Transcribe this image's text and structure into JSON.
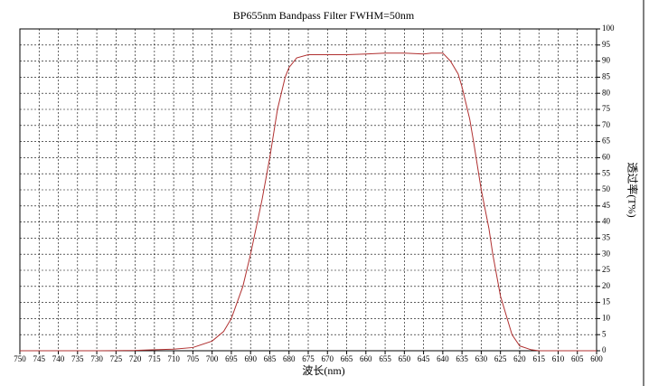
{
  "chart_data": {
    "type": "line",
    "title": "BP655nm Bandpass Filter FWHM=50nm",
    "x_label": "波长(nm)",
    "y_label": "透过率(T%)",
    "x": [
      750,
      740,
      730,
      720,
      715,
      710,
      705,
      700,
      697,
      695,
      692,
      690,
      687,
      685,
      683,
      681,
      680,
      678,
      675,
      670,
      665,
      660,
      655,
      650,
      645,
      643,
      640,
      638,
      636,
      635,
      633,
      632,
      630,
      628,
      627,
      625,
      623,
      622,
      620,
      617,
      615,
      610,
      600
    ],
    "series": [
      {
        "name": "BP655",
        "color": "#b03030",
        "values": [
          0,
          0,
          0,
          0.1,
          0.3,
          0.5,
          1,
          3,
          6,
          10,
          20,
          30,
          47,
          60,
          75,
          85,
          88,
          91,
          92,
          92,
          92,
          92.2,
          92.5,
          92.5,
          92.2,
          92.5,
          92.5,
          90,
          86,
          82,
          72,
          65,
          50,
          38,
          30,
          17,
          9,
          5,
          1.5,
          0.3,
          0,
          0,
          0
        ]
      }
    ],
    "xlim": [
      750,
      600
    ],
    "ylim": [
      0,
      100
    ],
    "xticks": [
      750,
      745,
      740,
      735,
      730,
      725,
      720,
      715,
      710,
      705,
      700,
      695,
      690,
      685,
      680,
      675,
      670,
      665,
      660,
      655,
      650,
      645,
      640,
      635,
      630,
      625,
      620,
      615,
      610,
      605,
      600
    ],
    "yticks": [
      0,
      5,
      10,
      15,
      20,
      25,
      30,
      35,
      40,
      45,
      50,
      55,
      60,
      65,
      70,
      75,
      80,
      85,
      90,
      95,
      100
    ],
    "grid": true
  }
}
